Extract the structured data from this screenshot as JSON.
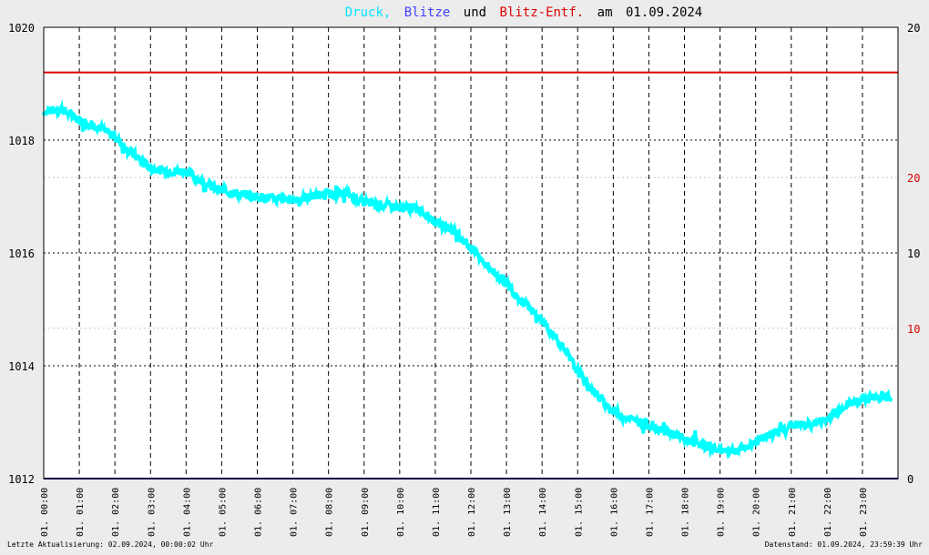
{
  "title": {
    "druck": "Druck,",
    "blitze": "Blitze",
    "und": "und",
    "entf": "Blitz-Entf.",
    "am": "am",
    "date": "01.09.2024"
  },
  "footer": {
    "left": "Letzte Aktualisierung: 02.09.2024, 00:00:02 Uhr",
    "right": "Datenstand: 01.09.2024, 23:59:39 Uhr"
  },
  "colors": {
    "pressure": "#00ffff",
    "blitze": "#4040ff",
    "distance": "#dd0000",
    "background": "#ffffff",
    "page": "#ececec",
    "grid": "#000000",
    "baseline": "#000080"
  },
  "chart_data": {
    "type": "line",
    "x_tick_labels": [
      "01. 00:00",
      "01. 01:00",
      "01. 02:00",
      "01. 03:00",
      "01. 04:00",
      "01. 05:00",
      "01. 06:00",
      "01. 07:00",
      "01. 08:00",
      "01. 09:00",
      "01. 10:00",
      "01. 11:00",
      "01. 12:00",
      "01. 13:00",
      "01. 14:00",
      "01. 15:00",
      "01. 16:00",
      "01. 17:00",
      "01. 18:00",
      "01. 19:00",
      "01. 20:00",
      "01. 21:00",
      "01. 22:00",
      "01. 23:00"
    ],
    "x_unit_hours": [
      0,
      24
    ],
    "ylim_left": [
      1012,
      1020
    ],
    "left_ticks": [
      "1012",
      "1014",
      "1016",
      "1018",
      "1020"
    ],
    "right_ticks": [
      {
        "label": "20",
        "color": "#000000",
        "frac": 1.0
      },
      {
        "label": "20",
        "color": "#dd0000",
        "frac": 0.667
      },
      {
        "label": "10",
        "color": "#000000",
        "frac": 0.5
      },
      {
        "label": "10",
        "color": "#dd0000",
        "frac": 0.333
      },
      {
        "label": "0",
        "color": "#000000",
        "frac": 0.0
      }
    ],
    "grid": true,
    "series": [
      {
        "name": "Druck",
        "x_hours": [
          0,
          0.5,
          1,
          1.5,
          2,
          2.5,
          3,
          3.5,
          4,
          4.5,
          5,
          5.5,
          6,
          6.5,
          7,
          7.5,
          8,
          8.5,
          9,
          9.5,
          10,
          10.5,
          11,
          11.5,
          12,
          12.5,
          13,
          13.5,
          14,
          14.5,
          15,
          15.5,
          16,
          16.5,
          17,
          17.5,
          18,
          18.5,
          19,
          19.5,
          20,
          20.5,
          21,
          21.5,
          22,
          22.5,
          23,
          23.5,
          23.8
        ],
        "values": [
          1018.5,
          1018.55,
          1018.35,
          1018.25,
          1018.05,
          1017.75,
          1017.5,
          1017.45,
          1017.45,
          1017.25,
          1017.1,
          1017.05,
          1017.0,
          1016.95,
          1016.95,
          1017.0,
          1017.05,
          1017.05,
          1016.9,
          1016.85,
          1016.8,
          1016.8,
          1016.55,
          1016.4,
          1016.1,
          1015.75,
          1015.45,
          1015.1,
          1014.8,
          1014.4,
          1013.9,
          1013.5,
          1013.2,
          1013.05,
          1012.95,
          1012.85,
          1012.7,
          1012.6,
          1012.5,
          1012.5,
          1012.65,
          1012.8,
          1012.95,
          1012.95,
          1013.05,
          1013.3,
          1013.4,
          1013.45,
          1013.45
        ]
      },
      {
        "name": "Blitze",
        "values": [
          0,
          0
        ]
      },
      {
        "name": "Blitz-Entf.",
        "value": 1019.2
      }
    ]
  }
}
